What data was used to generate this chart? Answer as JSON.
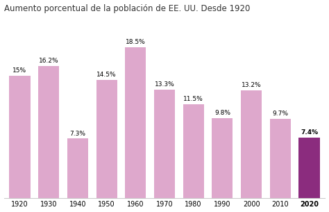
{
  "title": "Aumento porcentual de la población de EE. UU. Desde 1920",
  "categories": [
    "1920",
    "1930",
    "1940",
    "1950",
    "1960",
    "1970",
    "1980",
    "1990",
    "2000",
    "2010",
    "2020"
  ],
  "values": [
    15.0,
    16.2,
    7.3,
    14.5,
    18.5,
    13.3,
    11.5,
    9.8,
    13.2,
    9.7,
    7.4
  ],
  "bar_colors": [
    "#dea8cc",
    "#dea8cc",
    "#dea8cc",
    "#dea8cc",
    "#dea8cc",
    "#dea8cc",
    "#dea8cc",
    "#dea8cc",
    "#dea8cc",
    "#dea8cc",
    "#8b2c7e"
  ],
  "label_fontsize": 6.5,
  "title_fontsize": 8.5,
  "tick_fontsize": 7,
  "background_color": "#ffffff",
  "bar_width": 0.72,
  "ylim": [
    0,
    22
  ],
  "value_labels": [
    "15%",
    "16.2%",
    "7.3%",
    "14.5%",
    "18.5%",
    "13.3%",
    "11.5%",
    "9.8%",
    "13.2%",
    "9.7%",
    "7.4%"
  ]
}
